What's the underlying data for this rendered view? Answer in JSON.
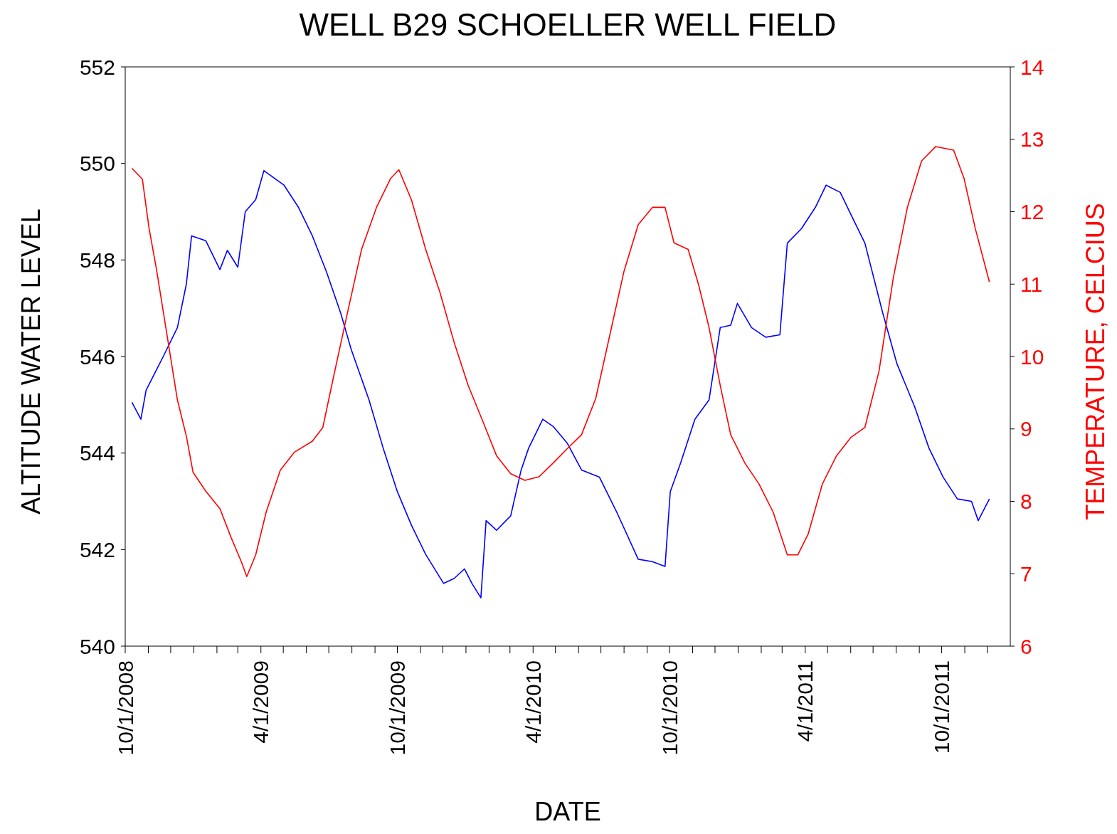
{
  "chart_data": {
    "type": "line",
    "title": "WELL B29 SCHOELLER WELL FIELD",
    "xlabel": "DATE",
    "ylabel": "ALTITUDE WATER LEVEL",
    "y2label": "TEMPERATURE, CELCIUS",
    "xlim": [
      "2008-10-01",
      "2012-01-01"
    ],
    "xticks": [
      {
        "value": "2008-10-01",
        "label": "10/1/2008"
      },
      {
        "value": "2008-11-01",
        "label": null
      },
      {
        "value": "2008-12-01",
        "label": null
      },
      {
        "value": "2009-01-01",
        "label": null
      },
      {
        "value": "2009-02-01",
        "label": null
      },
      {
        "value": "2009-03-01",
        "label": null
      },
      {
        "value": "2009-04-01",
        "label": "4/1/2009"
      },
      {
        "value": "2009-05-01",
        "label": null
      },
      {
        "value": "2009-06-01",
        "label": null
      },
      {
        "value": "2009-07-01",
        "label": null
      },
      {
        "value": "2009-08-01",
        "label": null
      },
      {
        "value": "2009-09-01",
        "label": null
      },
      {
        "value": "2009-10-01",
        "label": "10/1/2009"
      },
      {
        "value": "2009-11-01",
        "label": null
      },
      {
        "value": "2009-12-01",
        "label": null
      },
      {
        "value": "2010-01-01",
        "label": null
      },
      {
        "value": "2010-02-01",
        "label": null
      },
      {
        "value": "2010-03-01",
        "label": null
      },
      {
        "value": "2010-04-01",
        "label": "4/1/2010"
      },
      {
        "value": "2010-05-01",
        "label": null
      },
      {
        "value": "2010-06-01",
        "label": null
      },
      {
        "value": "2010-07-01",
        "label": null
      },
      {
        "value": "2010-08-01",
        "label": null
      },
      {
        "value": "2010-09-01",
        "label": null
      },
      {
        "value": "2010-10-01",
        "label": "10/1/2010"
      },
      {
        "value": "2010-11-01",
        "label": null
      },
      {
        "value": "2010-12-01",
        "label": null
      },
      {
        "value": "2011-01-01",
        "label": null
      },
      {
        "value": "2011-02-01",
        "label": null
      },
      {
        "value": "2011-03-01",
        "label": null
      },
      {
        "value": "2011-04-01",
        "label": "4/1/2011"
      },
      {
        "value": "2011-05-01",
        "label": null
      },
      {
        "value": "2011-06-01",
        "label": null
      },
      {
        "value": "2011-07-01",
        "label": null
      },
      {
        "value": "2011-08-01",
        "label": null
      },
      {
        "value": "2011-09-01",
        "label": null
      },
      {
        "value": "2011-10-01",
        "label": "10/1/2011"
      },
      {
        "value": "2011-11-01",
        "label": null
      },
      {
        "value": "2011-12-01",
        "label": null
      }
    ],
    "ylim": [
      540,
      552
    ],
    "yticks": [
      540,
      542,
      544,
      546,
      548,
      550,
      552
    ],
    "y2lim": [
      6,
      14
    ],
    "y2ticks": [
      6,
      7,
      8,
      9,
      10,
      11,
      12,
      13,
      14
    ],
    "marker": "none",
    "line_style": "solid",
    "series": [
      {
        "color": "#0000ff",
        "x": [
          "2008-10-10",
          "2008-10-22",
          "2008-10-29",
          "2008-11-21",
          "2008-12-10",
          "2008-12-22",
          "2008-12-29",
          "2009-01-17",
          "2009-02-05",
          "2009-02-15",
          "2009-03-01",
          "2009-03-11",
          "2009-03-25",
          "2009-04-05",
          "2009-05-02",
          "2009-05-21",
          "2009-06-09",
          "2009-06-28",
          "2009-07-17",
          "2009-07-31",
          "2009-08-24",
          "2009-09-12",
          "2009-10-01",
          "2009-10-20",
          "2009-11-08",
          "2009-12-02",
          "2009-12-16",
          "2009-12-30",
          "2010-01-09",
          "2010-01-21",
          "2010-01-28",
          "2010-02-11",
          "2010-03-02",
          "2010-03-16",
          "2010-03-26",
          "2010-04-14",
          "2010-04-28",
          "2010-05-17",
          "2010-06-05",
          "2010-06-29",
          "2010-07-23",
          "2010-08-20",
          "2010-09-08",
          "2010-09-25",
          "2010-10-02",
          "2010-10-16",
          "2010-11-04",
          "2010-11-23",
          "2010-12-08",
          "2010-12-22",
          "2010-12-31",
          "2011-01-19",
          "2011-02-07",
          "2011-02-26",
          "2011-03-08",
          "2011-03-27",
          "2011-04-15",
          "2011-04-29",
          "2011-05-18",
          "2011-06-01",
          "2011-06-20",
          "2011-07-14",
          "2011-08-02",
          "2011-08-26",
          "2011-09-14",
          "2011-10-03",
          "2011-10-22",
          "2011-11-10",
          "2011-11-19",
          "2011-12-04"
        ],
        "values": [
          545.05,
          544.7,
          545.3,
          546.0,
          546.6,
          547.5,
          548.5,
          548.4,
          547.8,
          548.2,
          547.85,
          549.0,
          549.25,
          549.85,
          549.55,
          549.1,
          548.5,
          547.75,
          546.9,
          546.15,
          545.1,
          544.1,
          543.2,
          542.5,
          541.9,
          541.3,
          541.4,
          541.6,
          541.3,
          541.0,
          542.6,
          542.4,
          542.7,
          543.65,
          544.1,
          544.7,
          544.55,
          544.2,
          543.65,
          543.5,
          542.75,
          541.8,
          541.75,
          541.65,
          543.2,
          543.8,
          544.7,
          545.1,
          546.6,
          546.65,
          547.1,
          546.6,
          546.4,
          546.45,
          548.35,
          548.65,
          549.1,
          549.55,
          549.4,
          548.95,
          548.35,
          546.9,
          545.85,
          544.95,
          544.1,
          543.5,
          543.05,
          543.0,
          542.6,
          543.05
        ]
      },
      {
        "color": "#ff0000",
        "axis": "y2",
        "x": [
          "2008-10-10",
          "2008-10-24",
          "2008-11-02",
          "2008-11-12",
          "2008-11-26",
          "2008-12-10",
          "2008-12-22",
          "2008-12-31",
          "2009-01-17",
          "2009-02-05",
          "2009-02-20",
          "2009-03-06",
          "2009-03-13",
          "2009-03-25",
          "2009-04-08",
          "2009-04-27",
          "2009-05-16",
          "2009-06-09",
          "2009-06-23",
          "2009-07-07",
          "2009-07-26",
          "2009-08-14",
          "2009-09-03",
          "2009-09-22",
          "2009-10-03",
          "2009-10-20",
          "2009-11-08",
          "2009-11-27",
          "2009-12-16",
          "2010-01-04",
          "2010-01-23",
          "2010-02-11",
          "2010-03-02",
          "2010-03-21",
          "2010-04-09",
          "2010-04-28",
          "2010-05-17",
          "2010-06-05",
          "2010-06-24",
          "2010-07-13",
          "2010-08-01",
          "2010-08-20",
          "2010-09-08",
          "2010-09-25",
          "2010-10-07",
          "2010-10-26",
          "2010-11-09",
          "2010-11-23",
          "2010-12-08",
          "2010-12-22",
          "2011-01-10",
          "2011-01-29",
          "2011-02-17",
          "2011-03-08",
          "2011-03-22",
          "2011-04-05",
          "2011-04-24",
          "2011-05-13",
          "2011-06-01",
          "2011-06-20",
          "2011-07-09",
          "2011-07-28",
          "2011-08-16",
          "2011-09-04",
          "2011-09-23",
          "2011-10-17",
          "2011-10-31",
          "2011-11-15",
          "2011-12-04"
        ],
        "values": [
          12.6,
          12.45,
          11.77,
          11.2,
          10.3,
          9.4,
          8.9,
          8.4,
          8.14,
          7.9,
          7.5,
          7.16,
          6.96,
          7.26,
          7.85,
          8.43,
          8.68,
          8.83,
          9.02,
          9.7,
          10.6,
          11.48,
          12.06,
          12.46,
          12.58,
          12.16,
          11.48,
          10.89,
          10.2,
          9.6,
          9.12,
          8.63,
          8.38,
          8.29,
          8.34,
          8.53,
          8.73,
          8.92,
          9.42,
          10.3,
          11.18,
          11.82,
          12.06,
          12.06,
          11.57,
          11.48,
          10.99,
          10.4,
          9.6,
          8.92,
          8.53,
          8.24,
          7.85,
          7.26,
          7.26,
          7.55,
          8.24,
          8.63,
          8.88,
          9.02,
          9.8,
          11.08,
          12.06,
          12.7,
          12.9,
          12.85,
          12.46,
          11.77,
          11.03
        ]
      }
    ]
  }
}
